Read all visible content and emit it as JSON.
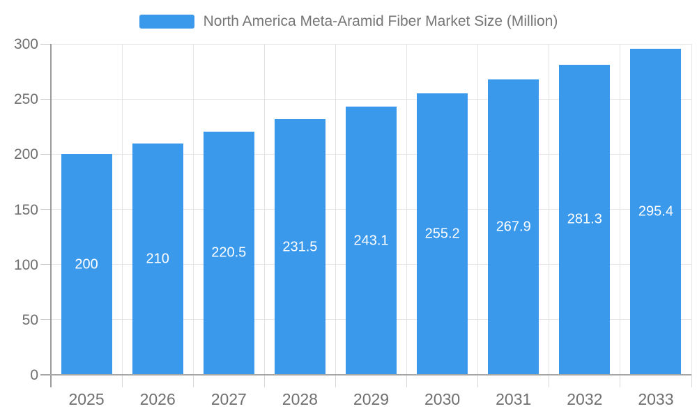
{
  "chart_data": {
    "type": "bar",
    "title": "North America Meta-Aramid Fiber Market Size (Million)",
    "categories": [
      "2025",
      "2026",
      "2027",
      "2028",
      "2029",
      "2030",
      "2031",
      "2032",
      "2033"
    ],
    "values": [
      200,
      210,
      220.5,
      231.5,
      243.1,
      255.2,
      267.9,
      281.3,
      295.4
    ],
    "value_labels": [
      "200",
      "210",
      "220.5",
      "231.5",
      "243.1",
      "255.2",
      "267.9",
      "281.3",
      "295.4"
    ],
    "xlabel": "",
    "ylabel": "",
    "ylim": [
      0,
      300
    ],
    "yticks": [
      0,
      50,
      100,
      150,
      200,
      250,
      300
    ],
    "grid": true,
    "legend_position": "top",
    "colors": {
      "bar": "#3B99EC",
      "value_label": "#ffffff",
      "axis_line": "#9B9B9B",
      "baseline": "#A6A6A6",
      "gridline": "#E4E4E4",
      "tick_label": "#6F6F6F",
      "legend_text": "#757575"
    }
  }
}
